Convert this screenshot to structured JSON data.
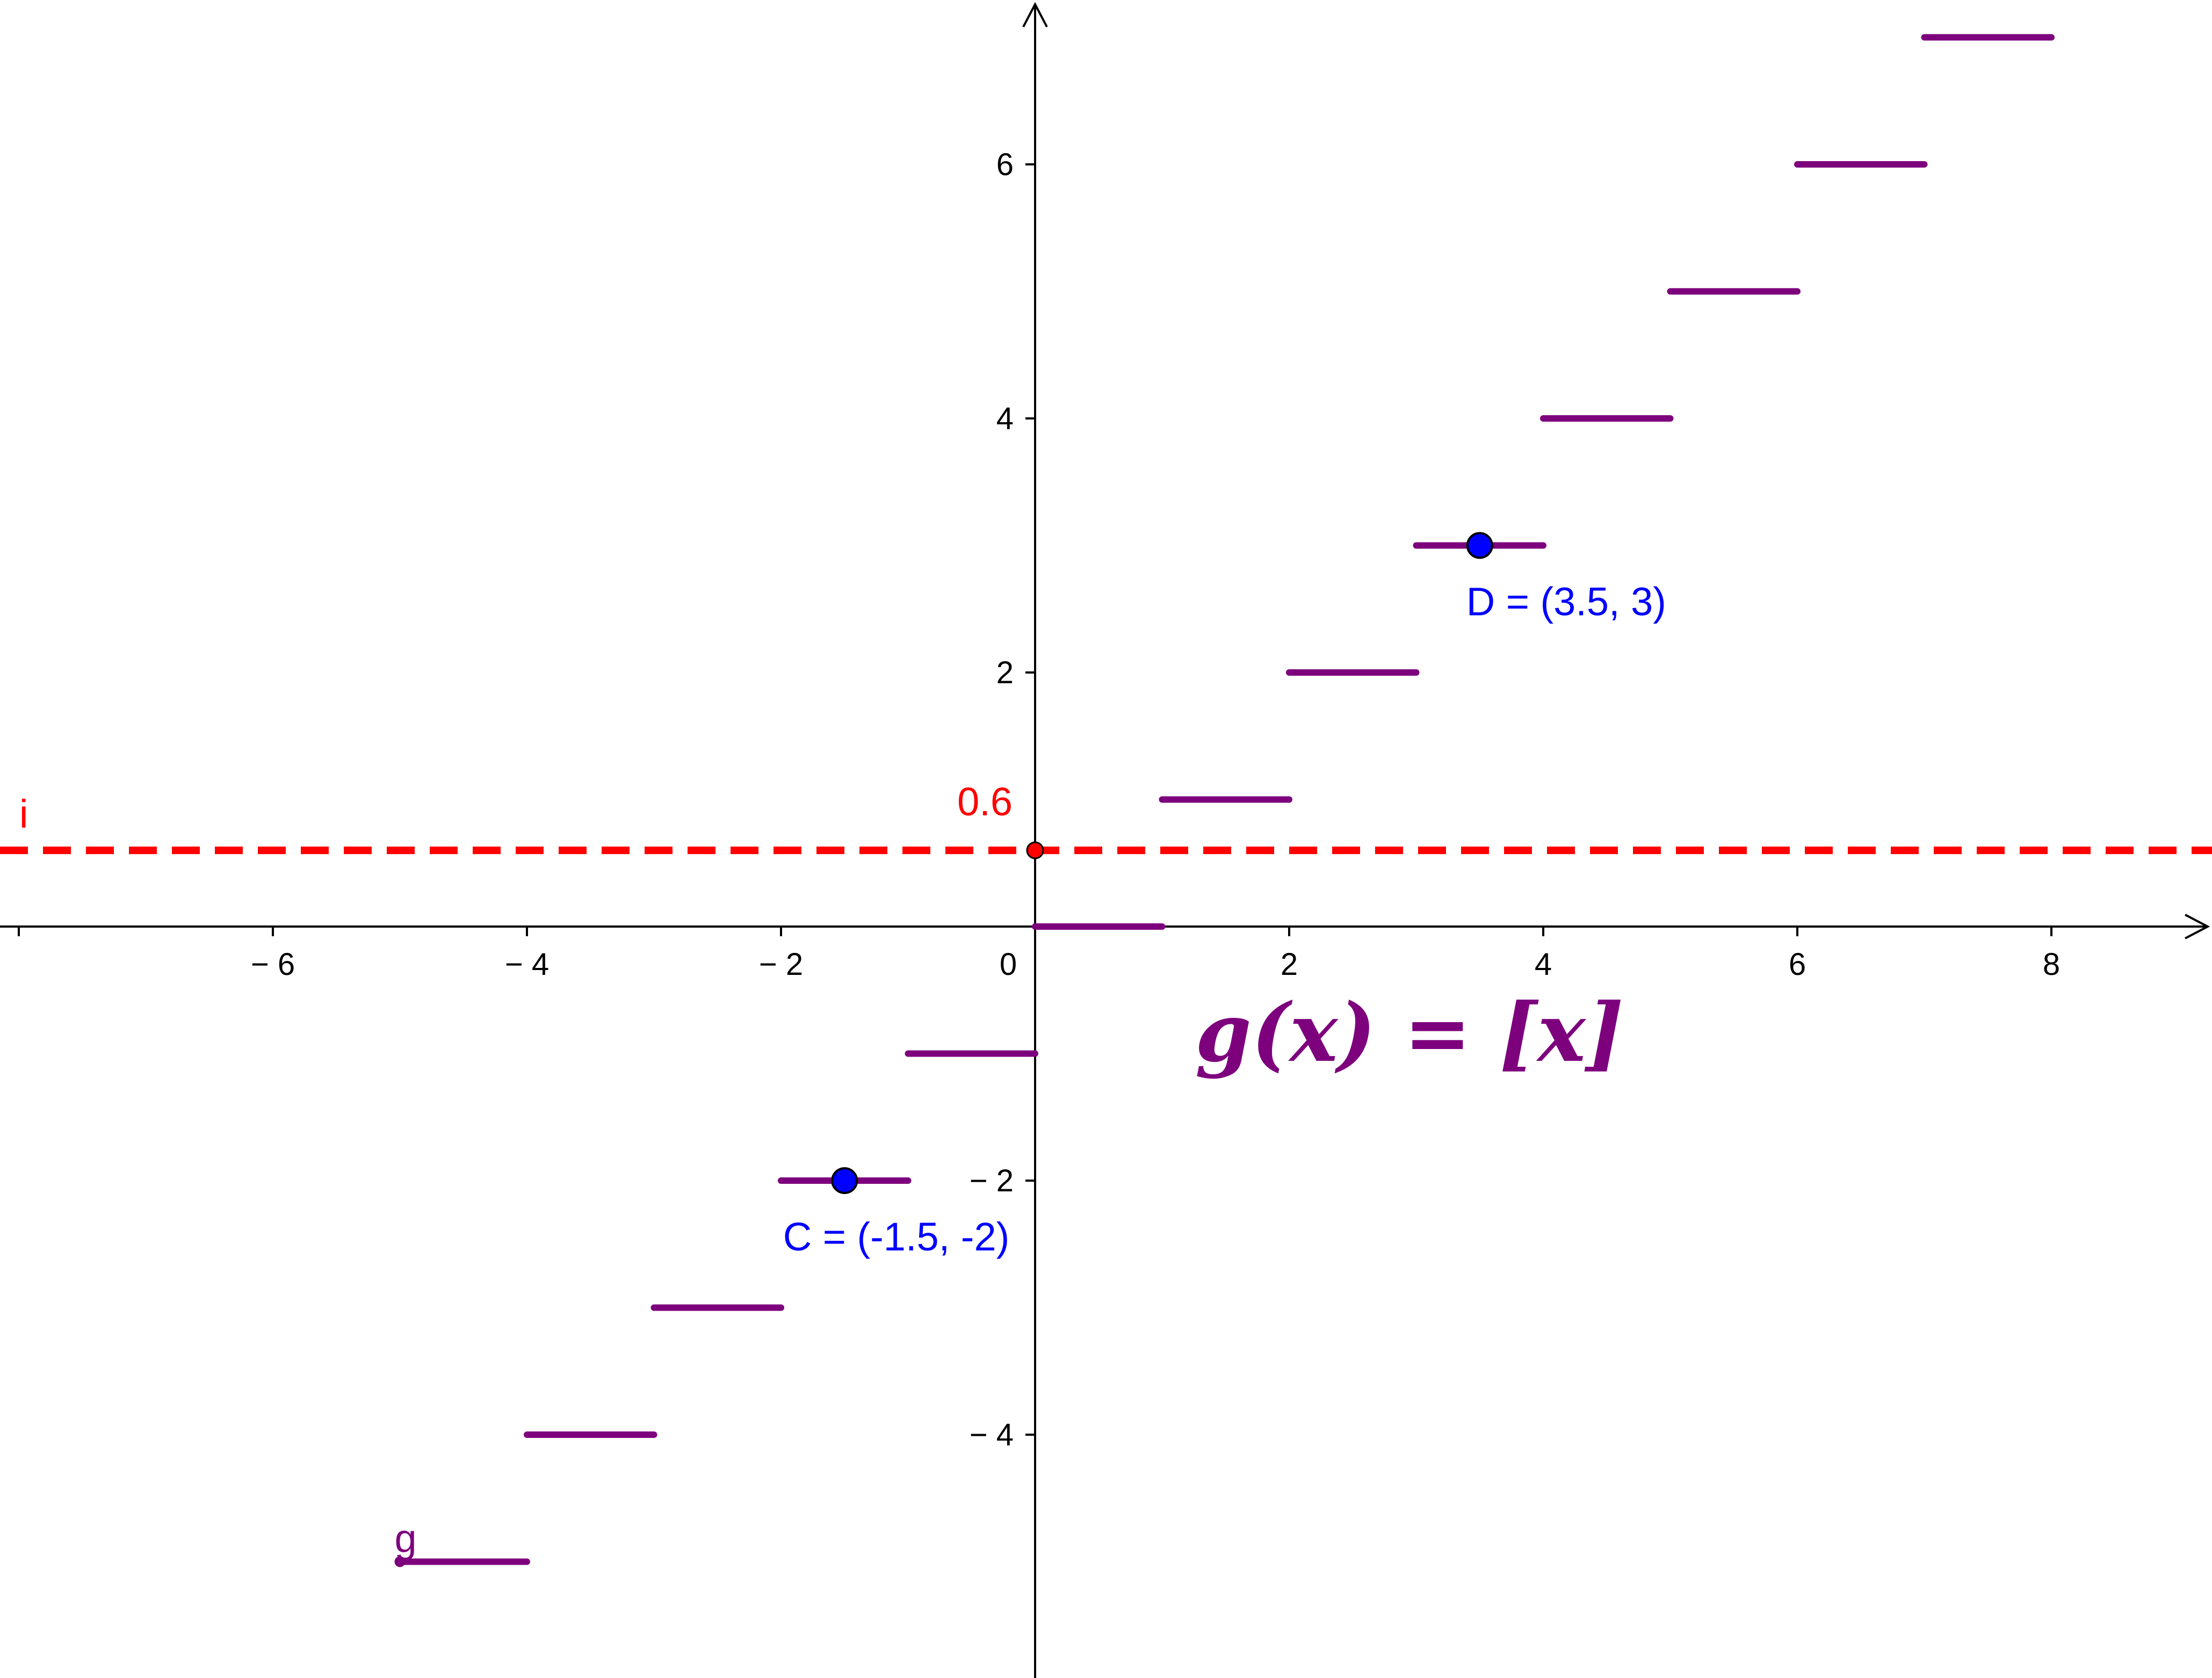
{
  "chart_data": {
    "type": "line",
    "xlim": [
      -8,
      9.2
    ],
    "ylim": [
      -5.9,
      7.2
    ],
    "grid": false,
    "axes": {
      "x_ticks": [
        -6,
        -4,
        -2,
        0,
        2,
        4,
        6,
        8
      ],
      "y_ticks": [
        -4,
        -2,
        2,
        4,
        6
      ],
      "x_tick_labels": [
        "− 6",
        "− 4",
        "− 2",
        "0",
        "2",
        "4",
        "6",
        "8"
      ],
      "y_tick_labels": [
        "− 4",
        "− 2",
        "2",
        "4",
        "6"
      ]
    },
    "series": [
      {
        "name": "g",
        "color": "#7d007d",
        "segments": [
          {
            "x": [
              -5,
              -4
            ],
            "y": -5
          },
          {
            "x": [
              -4,
              -3
            ],
            "y": -4
          },
          {
            "x": [
              -3,
              -2
            ],
            "y": -3
          },
          {
            "x": [
              -2,
              -1
            ],
            "y": -2
          },
          {
            "x": [
              -1,
              0
            ],
            "y": -1
          },
          {
            "x": [
              0,
              1
            ],
            "y": 0
          },
          {
            "x": [
              1,
              2
            ],
            "y": 1
          },
          {
            "x": [
              2,
              3
            ],
            "y": 2
          },
          {
            "x": [
              3,
              4
            ],
            "y": 3
          },
          {
            "x": [
              4,
              5
            ],
            "y": 4
          },
          {
            "x": [
              5,
              6
            ],
            "y": 5
          },
          {
            "x": [
              6,
              7
            ],
            "y": 6
          },
          {
            "x": [
              7,
              8
            ],
            "y": 7
          }
        ]
      }
    ],
    "horizontal_lines": [
      {
        "name": "i",
        "y": 0.6,
        "color": "#ff0000",
        "style": "dashed",
        "intercept_label": "0.6"
      }
    ],
    "points": [
      {
        "name": "D",
        "x": 3.5,
        "y": 3,
        "label": "D = (3.5, 3)",
        "color": "#0000ff"
      },
      {
        "name": "C",
        "x": -1.5,
        "y": -2,
        "label": "C = (-1.5, -2)",
        "color": "#0000ff"
      }
    ],
    "annotations": {
      "formula": "g(x) = [x]",
      "formula_color": "#7d007d",
      "series_label": "g",
      "line_label": "i"
    }
  }
}
